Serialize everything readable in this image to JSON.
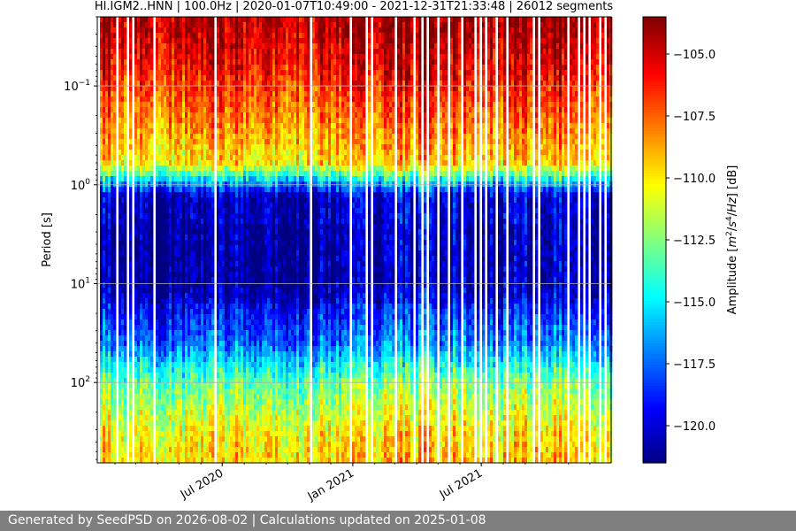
{
  "chart_data": {
    "type": "heatmap",
    "title": "HI.IGM2..HNN | 100.0Hz | 2020-01-07T10:49:00 - 2021-12-31T21:33:48 | 26012 segments",
    "xlabel": "",
    "ylabel": "Period [s]",
    "x_ticks": [
      "Jul 2020",
      "Jan 2021",
      "Jul 2021"
    ],
    "x_range": [
      "2020-01-07",
      "2021-12-31"
    ],
    "y_scale": "log",
    "y_ticks": [
      "10^-1",
      "10^0",
      "10^1",
      "10^2"
    ],
    "y_range_period_s": [
      0.02,
      650
    ],
    "colorbar": {
      "label": "Amplitude [m^2/s^4/Hz] [dB]",
      "colormap": "jet",
      "range_db": [
        -121.5,
        -103.5
      ],
      "ticks": [
        "−105.0",
        "−107.5",
        "−110.0",
        "−112.5",
        "−115.0",
        "−117.5",
        "−120.0"
      ]
    },
    "grid": true,
    "profile_db": [
      {
        "period_s": 0.025,
        "db": -104.5
      },
      {
        "period_s": 0.07,
        "db": -106.0
      },
      {
        "period_s": 0.2,
        "db": -108.0
      },
      {
        "period_s": 0.6,
        "db": -110.0
      },
      {
        "period_s": 1.0,
        "db": -117.0
      },
      {
        "period_s": 1.3,
        "db": -120.5
      },
      {
        "period_s": 10,
        "db": -120.5
      },
      {
        "period_s": 40,
        "db": -117.5
      },
      {
        "period_s": 100,
        "db": -113.0
      },
      {
        "period_s": 300,
        "db": -110.5
      },
      {
        "period_s": 650,
        "db": -109.5
      }
    ]
  },
  "footer": {
    "text": "Generated by SeedPSD on 2026-08-02 | Calculations updated on 2025-01-08"
  }
}
